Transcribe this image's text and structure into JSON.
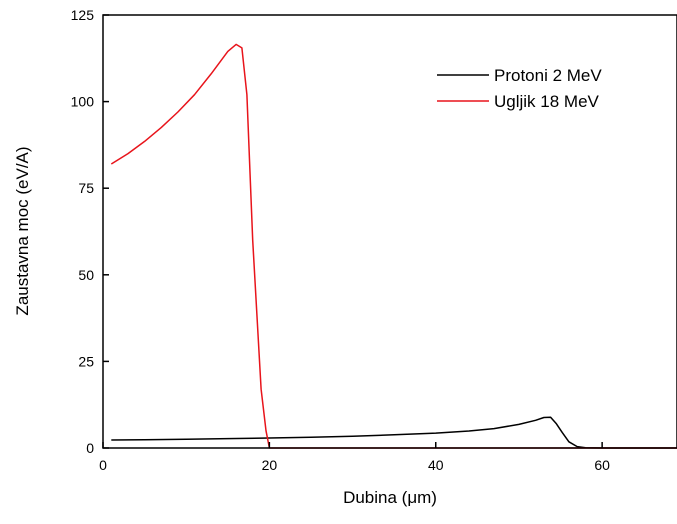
{
  "chart_data": {
    "type": "line",
    "xlabel": "Dubina (μm)",
    "ylabel": "Zaustavna moc (eV/A)",
    "xlim": [
      0,
      69
    ],
    "ylim": [
      0,
      125
    ],
    "xticks": [
      0,
      20,
      40,
      60
    ],
    "yticks": [
      0,
      25,
      50,
      75,
      100,
      125
    ],
    "xtick_labels": [
      "0",
      "20",
      "40",
      "60"
    ],
    "ytick_labels": [
      "0",
      "25",
      "50",
      "75",
      "100",
      "125"
    ],
    "grid": false,
    "legend_position": "top-right",
    "series": [
      {
        "name": "Protoni 2 MeV",
        "color": "#000000",
        "x": [
          1,
          5,
          10,
          15,
          20,
          25,
          30,
          35,
          40,
          44,
          47,
          50,
          52,
          53,
          53.8,
          54.5,
          55.2,
          56,
          57,
          58,
          60,
          65,
          69
        ],
        "y": [
          2.3,
          2.4,
          2.55,
          2.7,
          2.9,
          3.1,
          3.4,
          3.8,
          4.3,
          4.9,
          5.6,
          6.8,
          8.0,
          8.8,
          8.9,
          7.0,
          4.5,
          1.8,
          0.4,
          0.05,
          0,
          0,
          0
        ]
      },
      {
        "name": "Ugljik 18 MeV",
        "color": "#e8141b",
        "x": [
          1,
          3,
          5,
          7,
          9,
          11,
          13,
          15,
          16,
          16.7,
          17.3,
          18,
          19,
          19.6,
          20,
          22,
          30,
          40,
          50,
          60,
          69
        ],
        "y": [
          82,
          85,
          88.5,
          92.5,
          97,
          102,
          108,
          114.5,
          116.5,
          115.5,
          102,
          60,
          17,
          5,
          0,
          0,
          0,
          0,
          0,
          0,
          0
        ]
      }
    ]
  }
}
